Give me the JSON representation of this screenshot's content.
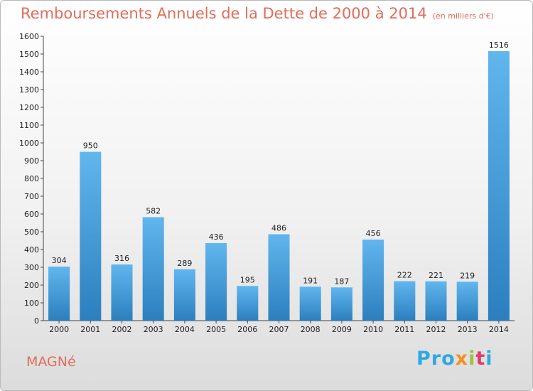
{
  "header": {
    "title": "Remboursements Annuels de la Dette de 2000 à 2014",
    "unit": "(en milliers d'€)"
  },
  "footer": {
    "place": "MAGNé",
    "logo_parts": [
      {
        "text": "Pro",
        "color": "#2fa8e0"
      },
      {
        "text": "x",
        "color": "#f0931e"
      },
      {
        "text": "i",
        "color": "#9bc43b"
      },
      {
        "text": "t",
        "color": "#e03b6b"
      },
      {
        "text": "i",
        "color": "#2fa8e0"
      }
    ]
  },
  "chart_data": {
    "type": "bar",
    "title": "Remboursements Annuels de la Dette de 2000 à 2014",
    "subtitle": "(en milliers d'€)",
    "categories": [
      "2000",
      "2001",
      "2002",
      "2003",
      "2004",
      "2005",
      "2006",
      "2007",
      "2008",
      "2009",
      "2010",
      "2011",
      "2012",
      "2013",
      "2014"
    ],
    "values": [
      304,
      950,
      316,
      582,
      289,
      436,
      195,
      486,
      191,
      187,
      456,
      222,
      221,
      219,
      1516
    ],
    "ylim": [
      0,
      1600
    ],
    "ytick_step": 100,
    "grid": false,
    "bar_color": "#4aa0dd",
    "bar_color_light": "#62b6ee",
    "bar_color_dark": "#2b7fbe"
  }
}
